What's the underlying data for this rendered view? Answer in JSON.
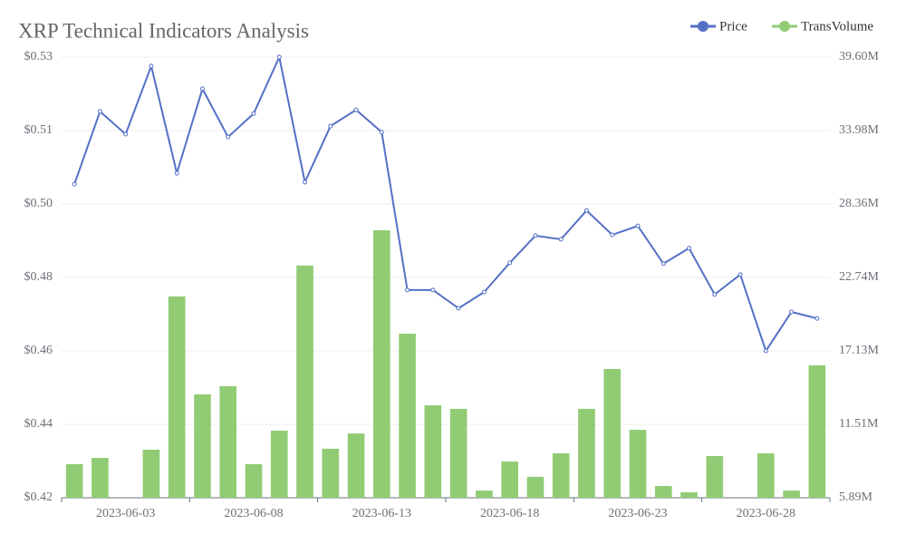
{
  "chart_data": {
    "type": "bar-line",
    "title": "XRP Technical Indicators Analysis",
    "categories": [
      null,
      null,
      "2023-06-03",
      null,
      null,
      null,
      null,
      "2023-06-08",
      null,
      null,
      null,
      null,
      "2023-06-13",
      null,
      null,
      null,
      null,
      "2023-06-18",
      null,
      null,
      null,
      null,
      "2023-06-23",
      null,
      null,
      null,
      null,
      "2023-06-28",
      null,
      null
    ],
    "series": [
      {
        "name": "Price",
        "type": "line",
        "color": "#5470c6",
        "axis": "y",
        "values": [
          0.5008,
          0.5187,
          0.5131,
          0.5299,
          0.5035,
          0.5243,
          0.5124,
          0.5182,
          0.5321,
          0.5013,
          0.5151,
          0.5191,
          0.5136,
          0.4747,
          0.4747,
          0.4702,
          0.4742,
          0.4814,
          0.4881,
          0.4872,
          0.4943,
          0.4883,
          0.4905,
          0.4812,
          0.485,
          0.4736,
          0.4785,
          0.4597,
          0.4693,
          0.4677
        ]
      },
      {
        "name": "TransVolume",
        "type": "bar",
        "color": "#91cc75",
        "axis": "y2",
        "values": [
          8460000,
          8940000,
          5890000,
          9570000,
          21290000,
          13800000,
          14420000,
          8460000,
          11020000,
          23650000,
          9640000,
          10810000,
          26350000,
          18440000,
          12960000,
          12690000,
          6440000,
          8660000,
          7490000,
          9290000,
          12690000,
          15740000,
          11090000,
          6790000,
          6310000,
          9080000,
          5890000,
          9290000,
          6440000,
          16020000
        ]
      }
    ],
    "ylim": [
      0.4235,
      0.5321
    ],
    "yticks": [
      {
        "value": 0.4235,
        "label": "$0.42"
      },
      {
        "value": 0.4416,
        "label": "$0.44"
      },
      {
        "value": 0.4597,
        "label": "$0.46"
      },
      {
        "value": 0.4778,
        "label": "$0.48"
      },
      {
        "value": 0.4959,
        "label": "$0.50"
      },
      {
        "value": 0.514,
        "label": "$0.51"
      },
      {
        "value": 0.5321,
        "label": "$0.53"
      }
    ],
    "y2lim": [
      5890000,
      39598000
    ],
    "y2ticks": [
      {
        "value": 5890000,
        "label": "5.89M"
      },
      {
        "value": 11508000,
        "label": "11.51M"
      },
      {
        "value": 17126000,
        "label": "17.13M"
      },
      {
        "value": 22744000,
        "label": "22.74M"
      },
      {
        "value": 28362000,
        "label": "28.36M"
      },
      {
        "value": 33980000,
        "label": "33.98M"
      },
      {
        "value": 39598000,
        "label": "39.60M"
      }
    ],
    "grid": true,
    "legend": "top-right"
  }
}
